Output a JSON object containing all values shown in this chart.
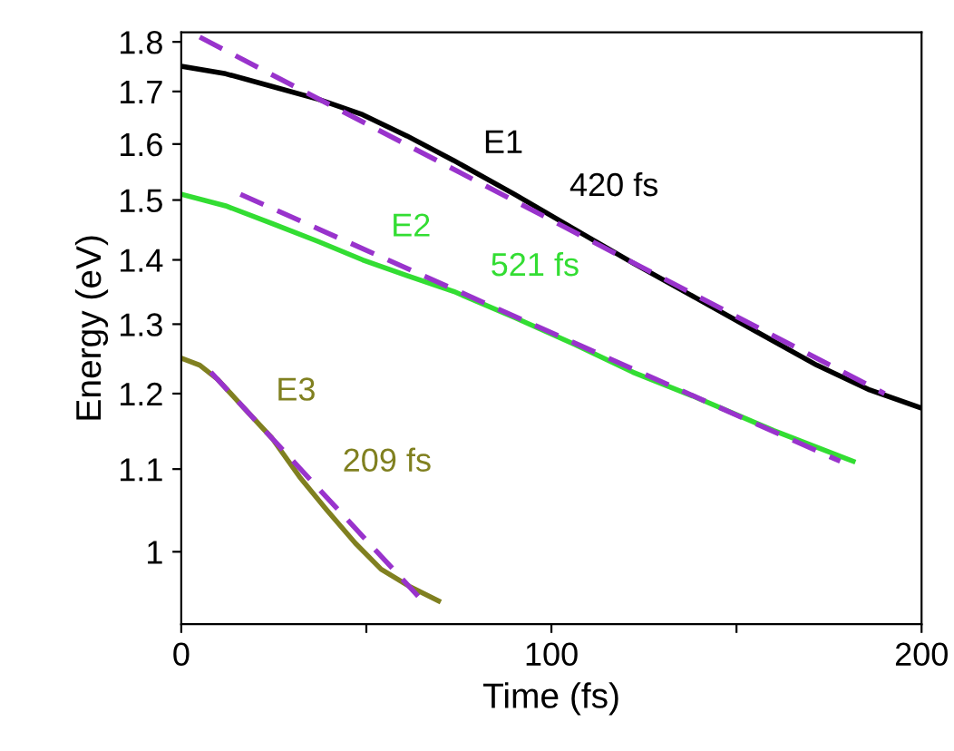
{
  "chart_data": {
    "type": "line",
    "xlabel": "Time (fs)",
    "ylabel": "Energy (eV)",
    "log": "y",
    "xlim": [
      0,
      200
    ],
    "ylim": [
      0.92,
      1.82
    ],
    "xticks": [
      0,
      {
        "value": 50,
        "label": null
      },
      100,
      {
        "value": 150,
        "label": null
      },
      200
    ],
    "yticks": [
      1,
      1.1,
      1.2,
      1.3,
      1.4,
      1.5,
      1.6,
      1.7,
      1.8
    ],
    "grid": false,
    "series": [
      {
        "name": "E1",
        "color": "#000000",
        "line_style": "solid",
        "x": [
          0,
          12,
          24.5,
          37,
          49,
          61,
          73.6,
          90,
          106.3,
          122,
          139,
          155,
          171.7,
          186,
          200
        ],
        "values": [
          1.75,
          1.735,
          1.71,
          1.685,
          1.655,
          1.615,
          1.57,
          1.51,
          1.45,
          1.395,
          1.34,
          1.29,
          1.24,
          1.205,
          1.18
        ]
      },
      {
        "color": "#9933cc",
        "line_style": "dashed",
        "x": [
          5,
          190
        ],
        "values": [
          1.81,
          1.2
        ]
      },
      {
        "name": "E2",
        "color": "#33dd33",
        "line_style": "solid",
        "x": [
          0,
          12,
          24.5,
          37,
          49,
          61,
          73.6,
          90,
          106.3,
          122,
          139,
          160,
          181.5
        ],
        "values": [
          1.51,
          1.49,
          1.46,
          1.43,
          1.4,
          1.375,
          1.35,
          1.31,
          1.27,
          1.23,
          1.195,
          1.15,
          1.11
        ]
      },
      {
        "color": "#9933cc",
        "line_style": "dashed",
        "x": [
          16,
          178
        ],
        "values": [
          1.51,
          1.11
        ]
      },
      {
        "name": "E3",
        "color": "#808020",
        "line_style": "solid",
        "x": [
          0,
          5,
          9.8,
          17,
          24.5,
          32,
          39.2,
          47,
          54,
          62,
          69.5
        ],
        "values": [
          1.25,
          1.24,
          1.22,
          1.18,
          1.14,
          1.09,
          1.05,
          1.01,
          0.98,
          0.96,
          0.945
        ]
      },
      {
        "color": "#9933cc",
        "line_style": "dashed",
        "x": [
          8,
          64
        ],
        "values": [
          1.23,
          0.95
        ]
      }
    ],
    "annotations": [
      "420 fs",
      "521 fs",
      "209 fs"
    ]
  }
}
